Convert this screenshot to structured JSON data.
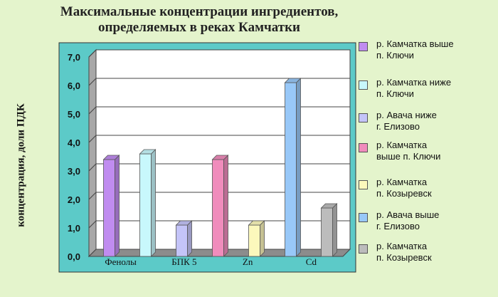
{
  "title_lines": [
    "Максимальные концентрации ингредиентов,",
    "определяемых в реках Камчатки"
  ],
  "chart_data": {
    "type": "bar",
    "title": "Максимальные концентрации ингредиентов, определяемых в реках Камчатки",
    "ylabel": "концентрация, доли ПДК",
    "ylim": [
      0,
      7
    ],
    "yticks": [
      "0,0",
      "1,0",
      "2,0",
      "3,0",
      "4,0",
      "5,0",
      "6,0",
      "7,0"
    ],
    "categories": [
      "Фенолы",
      "БПК 5",
      "Zn",
      "Cd"
    ],
    "grid": true,
    "legend_position": "right",
    "series": [
      {
        "name": "р. Камчатка выше п. Ключи",
        "color": "#c08cf0",
        "values": [
          3.4,
          null,
          null,
          null
        ]
      },
      {
        "name": "р. Камчатка ниже п. Ключи",
        "color": "#c8f8fc",
        "values": [
          3.6,
          null,
          null,
          null
        ]
      },
      {
        "name": "р. Авача ниже г. Елизово",
        "color": "#c4c4f8",
        "values": [
          null,
          1.1,
          null,
          null
        ]
      },
      {
        "name": "р. Камчатка выше п. Ключи",
        "color": "#f08cbc",
        "values": [
          null,
          null,
          3.4,
          null
        ]
      },
      {
        "name": "р. Камчатка п. Козыревск",
        "color": "#fcf8bc",
        "values": [
          null,
          null,
          1.1,
          null
        ]
      },
      {
        "name": "р. Авача выше г. Елизово",
        "color": "#98c8f8",
        "values": [
          null,
          null,
          6.1,
          null
        ]
      },
      {
        "name": "р. Камчатка п. Козыревск",
        "color": "#bcbcbc",
        "values": [
          null,
          null,
          null,
          1.7
        ]
      }
    ]
  },
  "legend_labels": [
    [
      "р. Камчатка выше",
      "п. Ключи"
    ],
    [
      "р. Камчатка ниже",
      "п. Ключи"
    ],
    [
      "р. Авача ниже",
      "г. Елизово"
    ],
    [
      "р. Камчатка",
      "выше п. Ключи"
    ],
    [
      "р. Камчатка",
      "п. Козыревск"
    ],
    [
      "р. Авача выше",
      "г. Елизово"
    ],
    [
      "р. Камчатка",
      "п. Козыревск"
    ]
  ],
  "colors": {
    "background": "#e4f4cc",
    "plot_frame": "#5ccac8",
    "plot_area": "#ffffff"
  }
}
